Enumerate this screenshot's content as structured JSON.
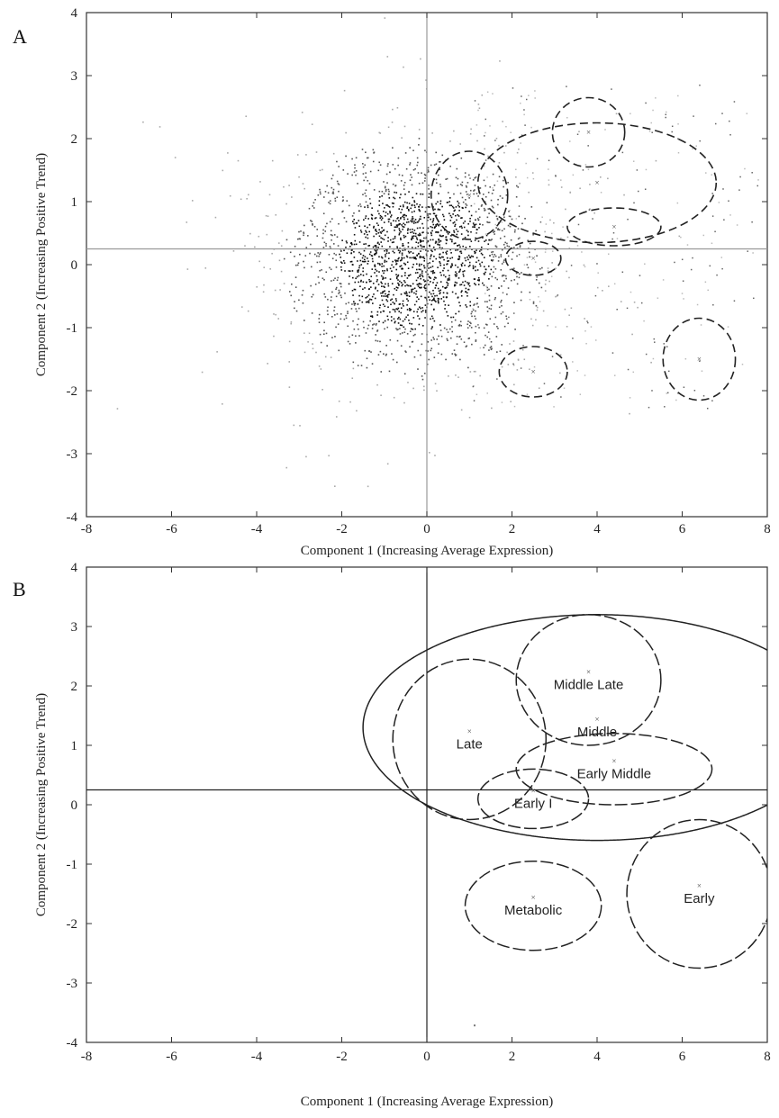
{
  "chart_data": [
    {
      "panel": "A",
      "type": "scatter",
      "xlabel": "Component 1 (Increasing Average Expression)",
      "ylabel": "Component 2 (Increasing Positive Trend)",
      "xlim": [
        -8,
        8
      ],
      "ylim": [
        -4,
        4
      ],
      "xticks": [
        "-8",
        "-6",
        "-4",
        "-2",
        "0",
        "2",
        "4",
        "6",
        "8"
      ],
      "yticks": [
        "-4",
        "-3",
        "-2",
        "-1",
        "0",
        "1",
        "2",
        "3",
        "4"
      ],
      "reference_lines": {
        "x": 0,
        "y": 0.25
      },
      "point_cloud": {
        "center": [
          -0.3,
          0.1
        ],
        "spread": [
          1.3,
          0.8
        ],
        "count": 2200
      },
      "ellipses": [
        {
          "cx": 3.8,
          "cy": 2.1,
          "rx": 0.85,
          "ry": 0.55,
          "style": "dashed"
        },
        {
          "cx": 4.0,
          "cy": 1.3,
          "rx": 2.8,
          "ry": 0.95,
          "style": "dashed"
        },
        {
          "cx": 1.0,
          "cy": 1.1,
          "rx": 0.9,
          "ry": 0.7,
          "style": "dashed"
        },
        {
          "cx": 4.4,
          "cy": 0.6,
          "rx": 1.1,
          "ry": 0.3,
          "style": "dashed"
        },
        {
          "cx": 2.5,
          "cy": 0.1,
          "rx": 0.65,
          "ry": 0.27,
          "style": "dashed"
        },
        {
          "cx": 2.5,
          "cy": -1.7,
          "rx": 0.8,
          "ry": 0.4,
          "style": "dashed"
        },
        {
          "cx": 6.4,
          "cy": -1.5,
          "rx": 0.85,
          "ry": 0.65,
          "style": "dashed"
        }
      ]
    },
    {
      "panel": "B",
      "type": "scatter",
      "xlabel": "Component 1 (Increasing Average Expression)",
      "ylabel": "Component 2 (Increasing Positive Trend)",
      "xlim": [
        -8,
        8
      ],
      "ylim": [
        -4,
        4
      ],
      "xticks": [
        "-8",
        "-6",
        "-4",
        "-2",
        "0",
        "2",
        "4",
        "6",
        "8"
      ],
      "yticks": [
        "-4",
        "-3",
        "-2",
        "-1",
        "0",
        "1",
        "2",
        "3",
        "4"
      ],
      "reference_lines": {
        "x": 0,
        "y": 0.25
      },
      "ellipses": [
        {
          "label": "Middle Late",
          "cx": 3.8,
          "cy": 2.1,
          "rx": 1.7,
          "ry": 1.1
        },
        {
          "label": "Middle",
          "cx": 4.0,
          "cy": 1.3,
          "rx": 5.5,
          "ry": 1.9
        },
        {
          "label": "Late",
          "cx": 1.0,
          "cy": 1.1,
          "rx": 1.8,
          "ry": 1.35
        },
        {
          "label": "Early Middle",
          "cx": 4.4,
          "cy": 0.6,
          "rx": 2.3,
          "ry": 0.6
        },
        {
          "label": "Early I",
          "cx": 2.5,
          "cy": 0.1,
          "rx": 1.3,
          "ry": 0.5
        },
        {
          "label": "Metabolic",
          "cx": 2.5,
          "cy": -1.7,
          "rx": 1.6,
          "ry": 0.75
        },
        {
          "label": "Early",
          "cx": 6.4,
          "cy": -1.5,
          "rx": 1.7,
          "ry": 1.25
        }
      ],
      "outlier": [
        1.1,
        -3.7
      ]
    }
  ],
  "panels": {
    "a_letter": "A",
    "b_letter": "B"
  }
}
